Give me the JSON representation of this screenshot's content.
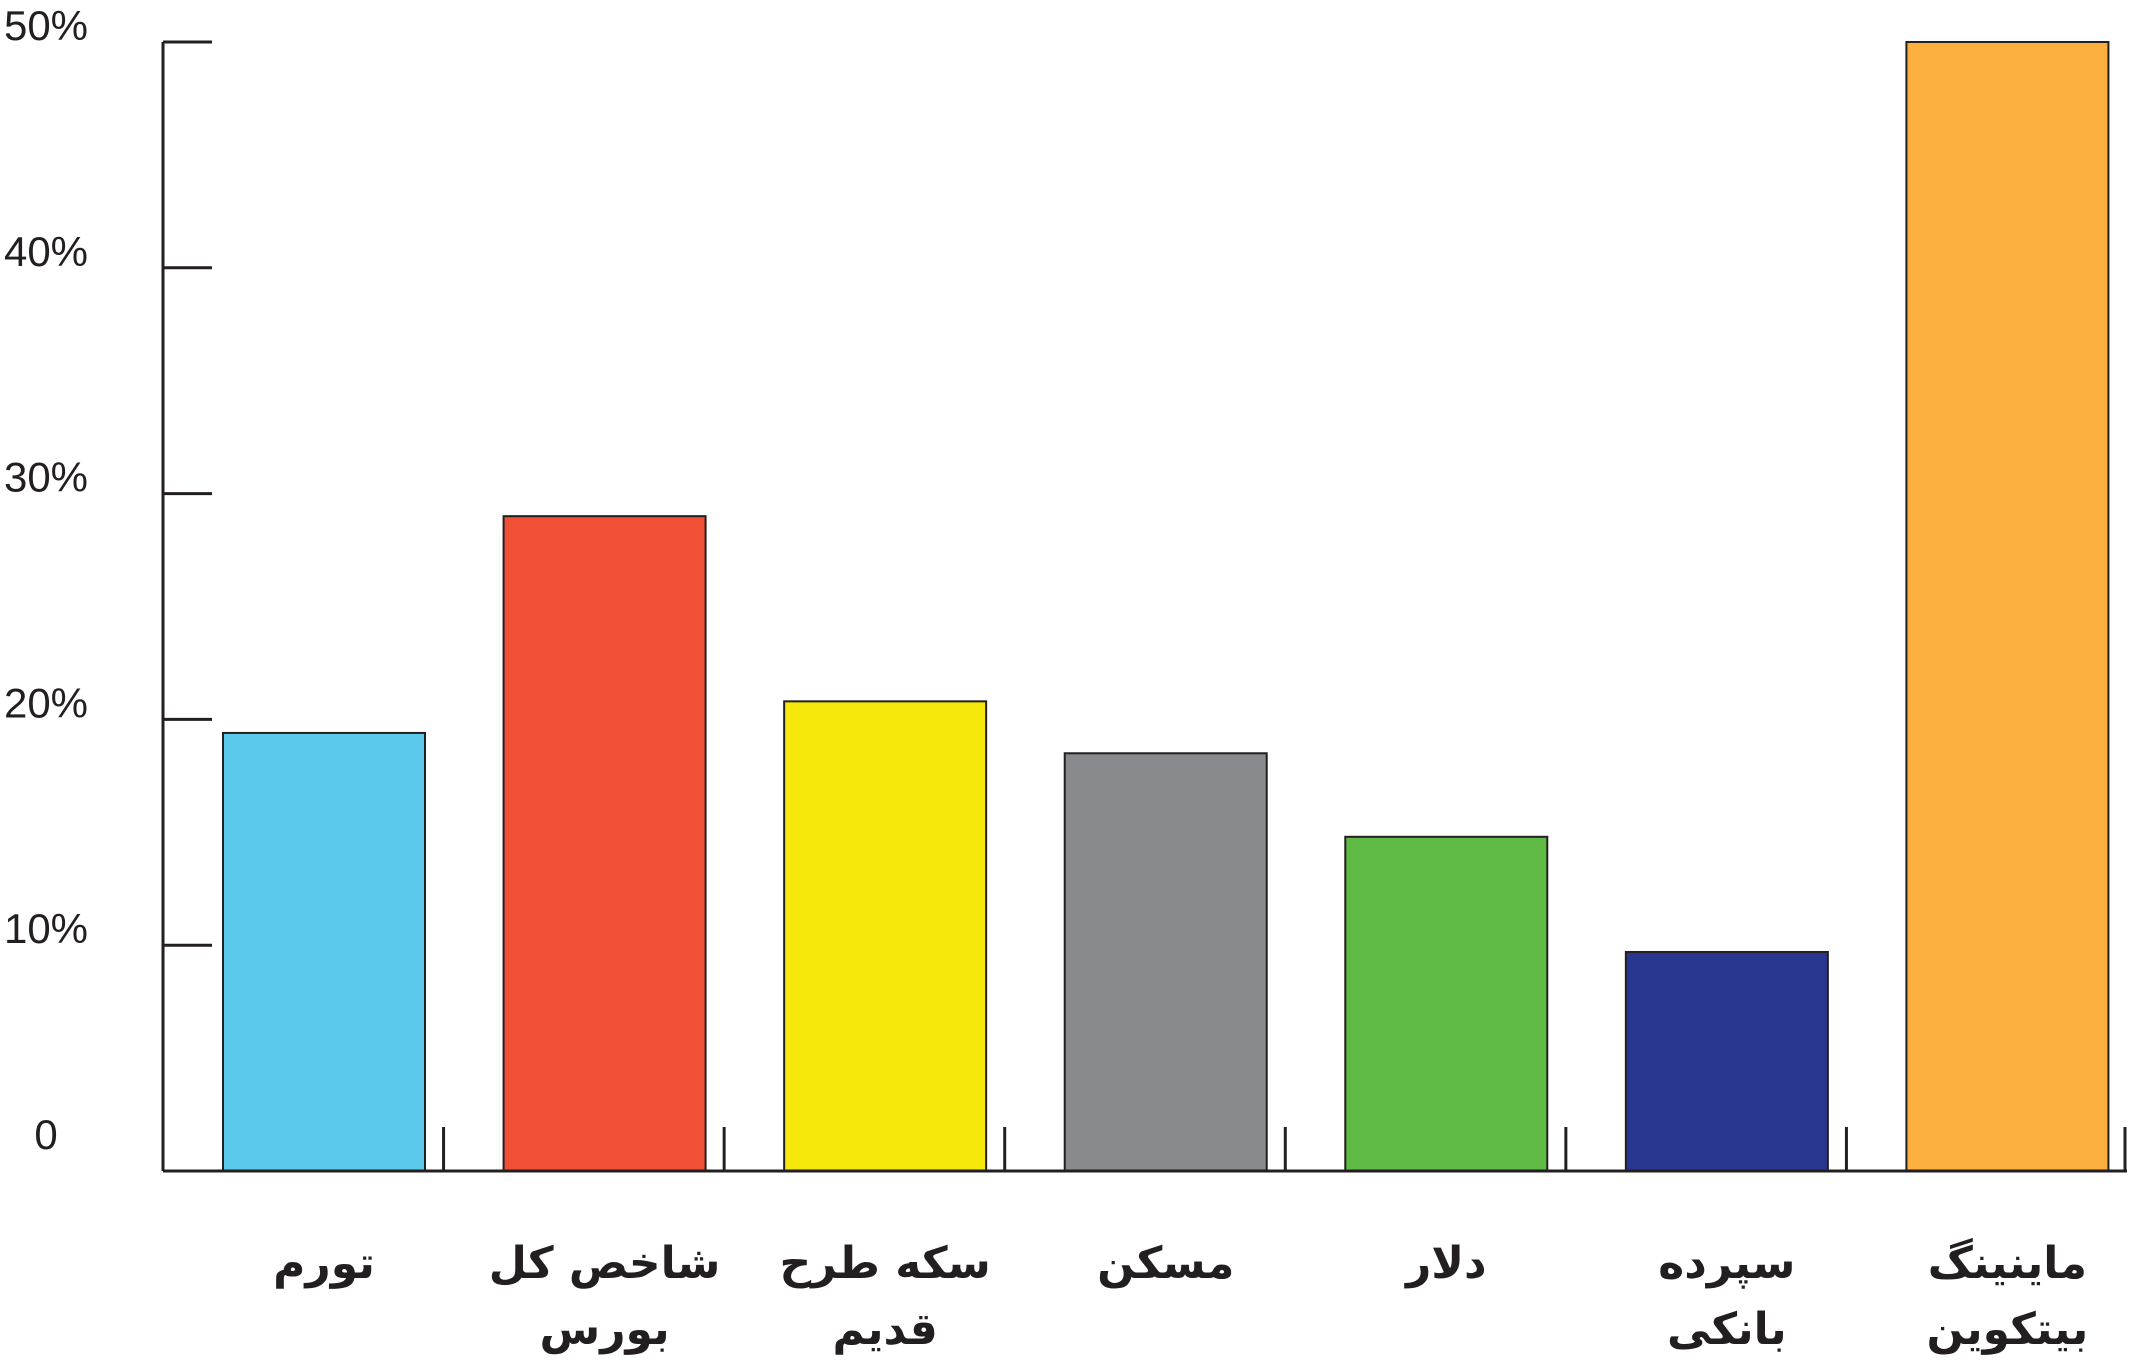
{
  "chart_data": {
    "type": "bar",
    "title": "",
    "xlabel": "",
    "ylabel": "",
    "ylim": [
      0,
      50
    ],
    "y_ticks": [
      0,
      10,
      20,
      30,
      40,
      50
    ],
    "y_tick_labels": [
      "0",
      "10%",
      "20%",
      "30%",
      "40%",
      "50%"
    ],
    "categories": [
      [
        "تورم"
      ],
      [
        "شاخص کل",
        "بورس"
      ],
      [
        "سکه طرح",
        "قدیم"
      ],
      [
        "مسکن"
      ],
      [
        "دلار"
      ],
      [
        "سپرده",
        "بانکی"
      ],
      [
        "ماینینگ",
        "بیتکوین"
      ]
    ],
    "values": [
      19.4,
      29.0,
      20.8,
      18.5,
      14.8,
      9.7,
      50.0
    ],
    "colors": [
      "#5bc9eb",
      "#f05136",
      "#f7e80c",
      "#898a8d",
      "#5fba46",
      "#283690",
      "#fbb040"
    ],
    "grid": false,
    "legend": "none"
  }
}
